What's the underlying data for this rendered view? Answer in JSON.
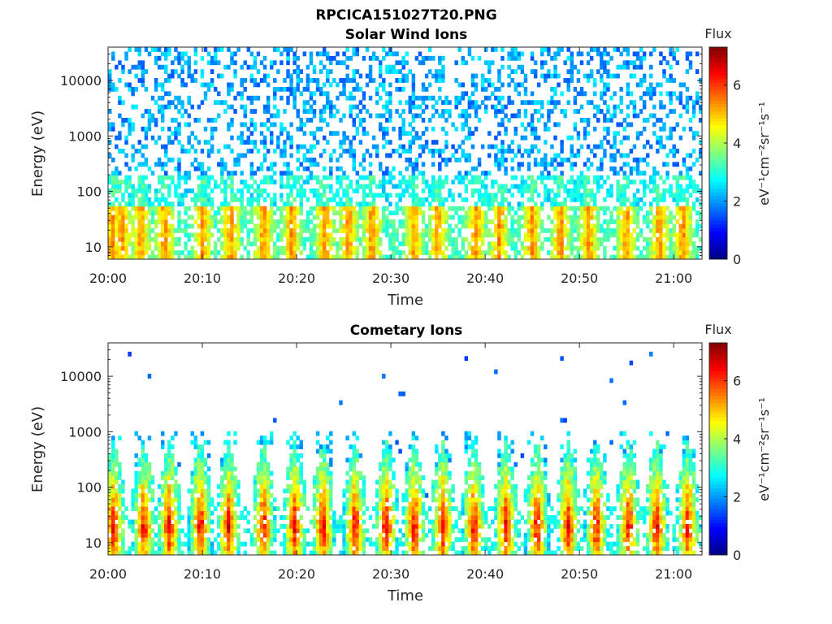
{
  "figure": {
    "filename": "RPCICA151027T20.PNG"
  },
  "chart_data": [
    {
      "type": "heatmap",
      "title": "Solar Wind Ions",
      "xlabel": "Time",
      "ylabel": "Energy (eV)",
      "xlim": [
        "20:00",
        "21:03"
      ],
      "ylim": [
        6,
        40000
      ],
      "yscale": "log",
      "x_ticks": [
        "20:00",
        "20:10",
        "20:20",
        "20:30",
        "20:40",
        "20:50",
        "21:00"
      ],
      "y_ticks": [
        "10",
        "100",
        "1000",
        "10000"
      ],
      "colorbar": {
        "title": "Flux",
        "label": "eV⁻¹cm⁻²sr⁻¹s⁻¹",
        "range": [
          0,
          7.3
        ],
        "ticks": [
          "0",
          "2",
          "4",
          "6"
        ],
        "colormap": "jet"
      },
      "description_values": {
        "bursts_min": [
          0.5,
          1.5,
          3.5,
          6,
          10,
          13,
          16.5,
          19.5,
          23,
          25.5,
          28,
          32.5,
          35,
          39,
          41.5,
          45,
          48,
          51,
          55,
          58.5,
          61
        ],
        "background_flux": 2.5,
        "low_energy_peak_flux": 5.2
      }
    },
    {
      "type": "heatmap",
      "title": "Cometary Ions",
      "xlabel": "Time",
      "ylabel": "Energy (eV)",
      "xlim": [
        "20:00",
        "21:03"
      ],
      "ylim": [
        6,
        40000
      ],
      "yscale": "log",
      "x_ticks": [
        "20:00",
        "20:10",
        "20:20",
        "20:30",
        "20:40",
        "20:50",
        "21:00"
      ],
      "y_ticks": [
        "10",
        "100",
        "1000",
        "10000"
      ],
      "colorbar": {
        "title": "Flux",
        "label": "eV⁻¹cm⁻²sr⁻¹s⁻¹",
        "range": [
          0,
          7.3
        ],
        "ticks": [
          "0",
          "2",
          "4",
          "6"
        ],
        "colormap": "jet"
      },
      "description_values": {
        "bursts_min": [
          0.6,
          3.8,
          6.5,
          9.8,
          12.8,
          16.5,
          19.8,
          22.8,
          26.2,
          29.5,
          32.5,
          35.5,
          38.8,
          42.2,
          45.5,
          48.8,
          51.8,
          55.2,
          58.2,
          61.5
        ],
        "peak_flux": 7.0,
        "peak_energy_eV": 20
      }
    }
  ]
}
